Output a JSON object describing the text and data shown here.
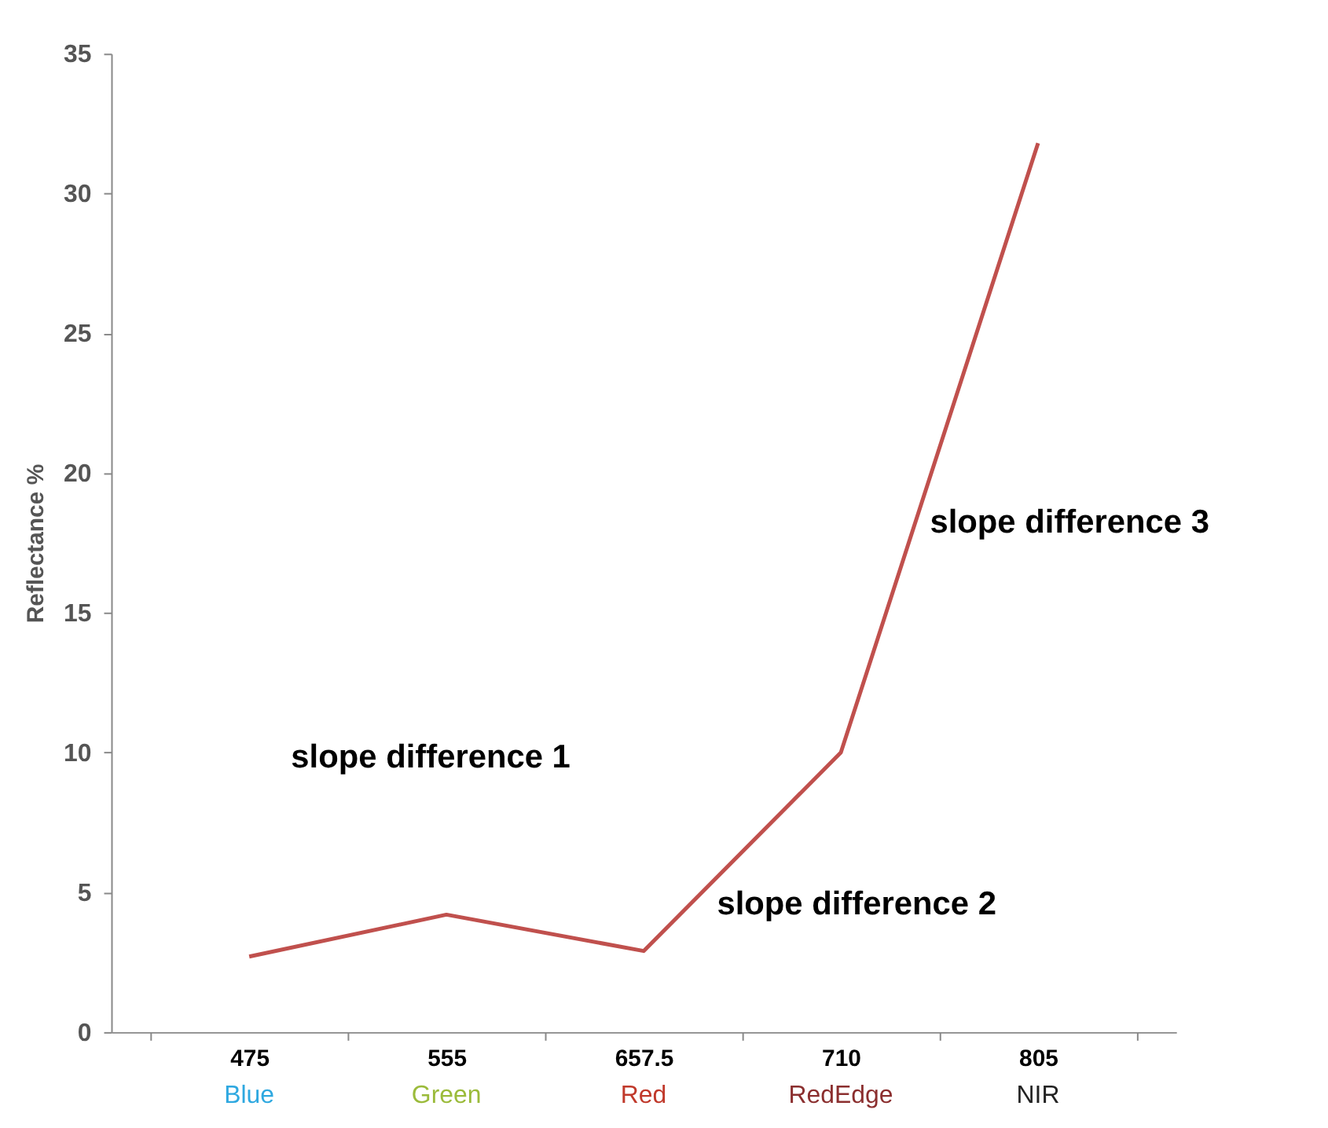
{
  "chart_data": {
    "type": "line",
    "ylabel": "Reflectance %",
    "categories": [
      "475",
      "555",
      "657.5",
      "710",
      "805"
    ],
    "series": [
      {
        "color": "#c0504d",
        "values": [
          2.7,
          4.2,
          2.9,
          10.0,
          31.8
        ]
      }
    ],
    "ylim": [
      0,
      35
    ],
    "yticks": [
      0,
      5,
      10,
      15,
      20,
      25,
      30,
      35
    ],
    "grid": false,
    "marker": "none",
    "line_style": "solid",
    "annotations": [
      "slope difference 1",
      "slope difference 2",
      "slope difference 3",
      "Blue",
      "Green",
      "Red",
      "RedEdge",
      "NIR"
    ]
  }
}
